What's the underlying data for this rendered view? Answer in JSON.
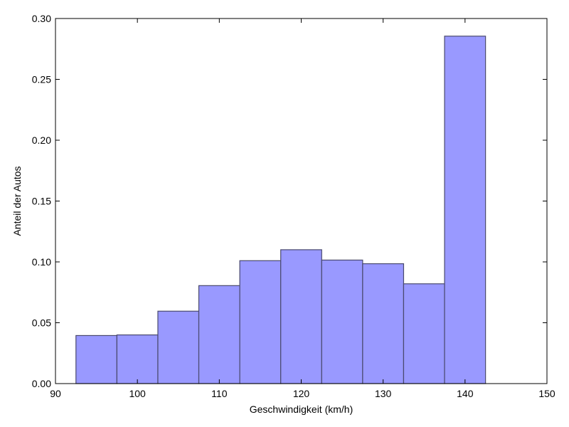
{
  "chart_data": {
    "type": "bar",
    "title": "",
    "xlabel": "Geschwindigkeit (km/h)",
    "ylabel": "Anteil der Autos",
    "xlim": [
      90,
      150
    ],
    "ylim": [
      0,
      0.3
    ],
    "x_ticks": [
      90,
      100,
      110,
      120,
      130,
      140,
      150
    ],
    "y_ticks": [
      0.0,
      0.05,
      0.1,
      0.15,
      0.2,
      0.25,
      0.3
    ],
    "y_tick_labels": [
      "0.00",
      "0.05",
      "0.10",
      "0.15",
      "0.20",
      "0.25",
      "0.30"
    ],
    "bin_edges": [
      92.5,
      97.5,
      102.5,
      107.5,
      112.5,
      117.5,
      122.5,
      127.5,
      132.5,
      137.5,
      142.5
    ],
    "values": [
      0.0395,
      0.04,
      0.0595,
      0.0805,
      0.101,
      0.11,
      0.1015,
      0.0985,
      0.082,
      0.2855
    ],
    "grid": false,
    "legend": "none",
    "bar_color": "#9999ff",
    "bar_edge_color": "#4a4a6e"
  }
}
